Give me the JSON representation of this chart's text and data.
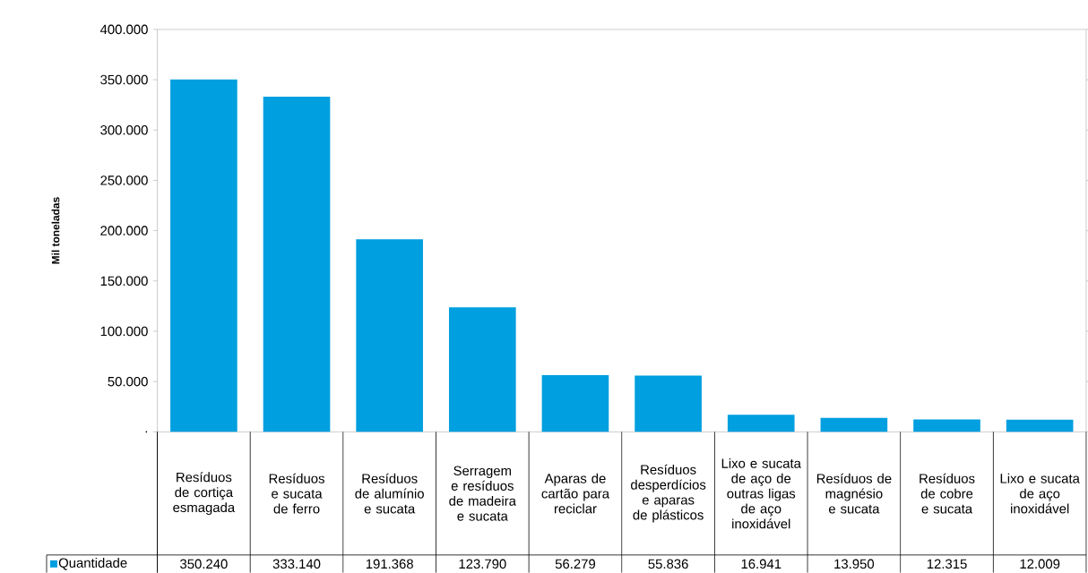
{
  "chart_data": {
    "type": "bar",
    "ylabel": "Mil toneladas",
    "categories": [
      "Resíduos de cortiça esmagada",
      "Resíduos e sucata de ferro",
      "Resíduos de alumínio e sucata",
      "Serragem e resíduos de madeira e sucata",
      "Aparas de cartão para reciclar",
      "Resíduos desperdícios e aparas de plásticos",
      "Lixo e sucata de aço de outras ligas de aço inoxidável",
      "Resíduos de magnésio e sucata",
      "Resíduos de cobre e sucata",
      "Lixo e sucata de aço inoxidável"
    ],
    "series": [
      {
        "name": "Quantidade",
        "color": "#009fdf",
        "values": [
          350240,
          333140,
          191368,
          123790,
          56279,
          55836,
          16941,
          13950,
          12315,
          12009
        ],
        "value_labels": [
          "350.240",
          "333.140",
          "191.368",
          "123.790",
          "56.279",
          "55.836",
          "16.941",
          "13.950",
          "12.315",
          "12.009"
        ]
      }
    ],
    "ylim": [
      0,
      400000
    ],
    "yticks": [
      {
        "value": 0,
        "label": "."
      },
      {
        "value": 50000,
        "label": "50.000"
      },
      {
        "value": 100000,
        "label": "100.000"
      },
      {
        "value": 150000,
        "label": "150.000"
      },
      {
        "value": 200000,
        "label": "200.000"
      },
      {
        "value": 250000,
        "label": "250.000"
      },
      {
        "value": 300000,
        "label": "300.000"
      },
      {
        "value": 350000,
        "label": "350.000"
      },
      {
        "value": 400000,
        "label": "400.000"
      }
    ],
    "legend": "bottom left",
    "grid": false
  }
}
